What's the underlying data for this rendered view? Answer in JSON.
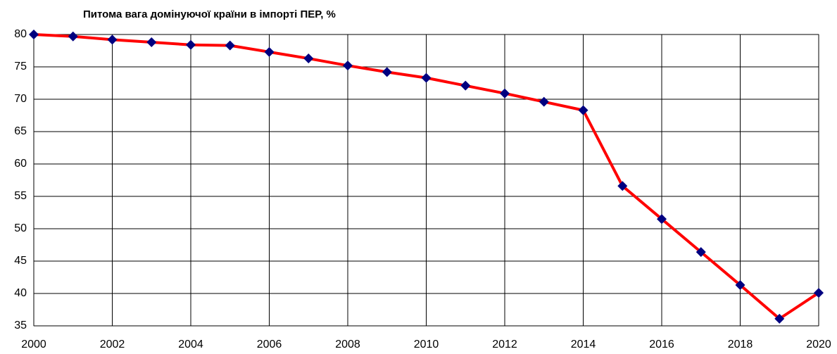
{
  "chart_data": {
    "type": "line",
    "title": "Питома вага домінуючої країни в імпорті ПЕР, %",
    "x": [
      2000,
      2001,
      2002,
      2003,
      2004,
      2005,
      2006,
      2007,
      2008,
      2009,
      2010,
      2011,
      2012,
      2013,
      2014,
      2015,
      2016,
      2017,
      2018,
      2019,
      2020
    ],
    "series": [
      {
        "name": "",
        "color": "#ff0000",
        "marker_color": "#000080",
        "values": [
          80,
          79.7,
          79.2,
          78.8,
          78.4,
          78.3,
          77.3,
          76.3,
          75.2,
          74.2,
          73.3,
          72.1,
          70.9,
          69.6,
          68.3,
          56.6,
          51.5,
          46.4,
          41.3,
          36.1,
          40.1
        ]
      }
    ],
    "xlim": [
      2000,
      2020
    ],
    "xticks": [
      2000,
      2002,
      2004,
      2006,
      2008,
      2010,
      2012,
      2014,
      2016,
      2018,
      2020
    ],
    "ylim": [
      35,
      80
    ],
    "yticks": [
      35,
      40,
      45,
      50,
      55,
      60,
      65,
      70,
      75,
      80
    ],
    "grid": true
  }
}
